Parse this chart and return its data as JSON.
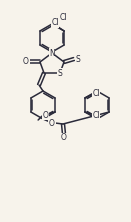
{
  "background_color": "#f7f3eb",
  "bond_color": "#2a2a3a",
  "lw": 1.1,
  "figsize": [
    1.31,
    2.22
  ],
  "dpi": 100,
  "xlim": [
    0,
    131
  ],
  "ylim": [
    0,
    222
  ]
}
